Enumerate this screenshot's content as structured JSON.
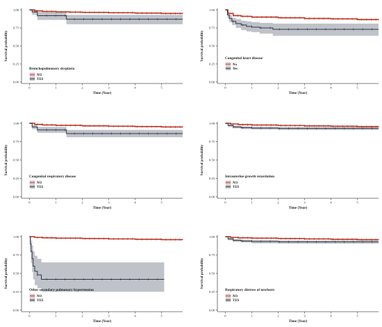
{
  "colors": {
    "no_line": "#c0392b",
    "no_band": "#e8a8a8",
    "yes_line": "#2f3640",
    "yes_band": "#b4b9bf",
    "axis": "#555555",
    "text": "#222222"
  },
  "chart_data": [
    {
      "type": "line",
      "title": "Bronchopulmonary dysplasia",
      "xlabel": "Time (Year)",
      "ylabel": "Survival probability",
      "xlim": [
        -0.3,
        5.8
      ],
      "ylim": [
        0,
        1.0
      ],
      "xticks": [
        0,
        1,
        2,
        3,
        4,
        5
      ],
      "yticks": [
        "0.00",
        "0.25",
        "0.50",
        "0.75",
        "1.00"
      ],
      "grid": false,
      "legend": "inside-left",
      "series": [
        {
          "name": "NO",
          "x": [
            0,
            0.2,
            0.5,
            1,
            1.5,
            2,
            3,
            4,
            5,
            5.8
          ],
          "y": [
            1.0,
            0.985,
            0.978,
            0.972,
            0.968,
            0.965,
            0.96,
            0.955,
            0.95,
            0.948
          ],
          "lower": [
            1.0,
            0.98,
            0.972,
            0.966,
            0.962,
            0.958,
            0.953,
            0.948,
            0.942,
            0.94
          ],
          "upper": [
            1.0,
            0.99,
            0.984,
            0.978,
            0.974,
            0.972,
            0.967,
            0.962,
            0.958,
            0.956
          ]
        },
        {
          "name": "YES",
          "x": [
            0,
            0.1,
            0.3,
            1.4,
            5.8
          ],
          "y": [
            1.0,
            0.97,
            0.92,
            0.87,
            0.87
          ],
          "lower": [
            1.0,
            0.93,
            0.86,
            0.8,
            0.8
          ],
          "upper": [
            1.0,
            1.0,
            0.97,
            0.93,
            0.93
          ]
        }
      ]
    },
    {
      "type": "line",
      "title": "Congenital heart disease",
      "xlabel": "Time (Year)",
      "ylabel": "Survival probability",
      "xlim": [
        -0.3,
        5.8
      ],
      "ylim": [
        0,
        1.0
      ],
      "xticks": [
        0,
        1,
        2,
        3,
        4,
        5
      ],
      "yticks": [
        "0.00",
        "0.25",
        "0.50",
        "0.75",
        "1.00"
      ],
      "grid": false,
      "legend": "inside-left",
      "series": [
        {
          "name": "No",
          "x": [
            0,
            0.1,
            0.3,
            0.6,
            1,
            2,
            3,
            4,
            5,
            5.8
          ],
          "y": [
            1.0,
            0.95,
            0.92,
            0.91,
            0.9,
            0.89,
            0.88,
            0.875,
            0.865,
            0.86
          ],
          "lower": [
            1.0,
            0.94,
            0.91,
            0.9,
            0.89,
            0.88,
            0.87,
            0.865,
            0.855,
            0.85
          ],
          "upper": [
            1.0,
            0.96,
            0.93,
            0.92,
            0.91,
            0.9,
            0.89,
            0.885,
            0.875,
            0.87
          ]
        },
        {
          "name": "Yes",
          "x": [
            0,
            0.08,
            0.15,
            0.25,
            0.4,
            0.6,
            0.8,
            1.0,
            1.3,
            1.8,
            5.8
          ],
          "y": [
            1.0,
            0.93,
            0.88,
            0.84,
            0.81,
            0.79,
            0.77,
            0.76,
            0.75,
            0.73,
            0.73
          ],
          "lower": [
            1.0,
            0.89,
            0.83,
            0.79,
            0.75,
            0.72,
            0.7,
            0.69,
            0.67,
            0.64,
            0.64
          ],
          "upper": [
            1.0,
            0.97,
            0.93,
            0.89,
            0.87,
            0.85,
            0.84,
            0.83,
            0.82,
            0.81,
            0.81
          ]
        }
      ]
    },
    {
      "type": "line",
      "title": "Congenital respiratory disease",
      "xlabel": "Time (Year)",
      "ylabel": "Survival probability",
      "xlim": [
        -0.3,
        5.8
      ],
      "ylim": [
        0,
        1.0
      ],
      "xticks": [
        0,
        1,
        2,
        3,
        4,
        5
      ],
      "yticks": [
        "0.00",
        "0.25",
        "0.50",
        "0.75",
        "1.00"
      ],
      "grid": false,
      "legend": "inside-left",
      "series": [
        {
          "name": "NO",
          "x": [
            0,
            0.2,
            0.5,
            1,
            2,
            3,
            4,
            5,
            5.8
          ],
          "y": [
            1.0,
            0.985,
            0.978,
            0.972,
            0.965,
            0.96,
            0.955,
            0.95,
            0.948
          ],
          "lower": [
            1.0,
            0.98,
            0.972,
            0.966,
            0.958,
            0.953,
            0.948,
            0.942,
            0.94
          ],
          "upper": [
            1.0,
            0.99,
            0.984,
            0.978,
            0.972,
            0.967,
            0.962,
            0.958,
            0.956
          ]
        },
        {
          "name": "YES",
          "x": [
            0,
            0.1,
            0.3,
            1.4,
            5.8
          ],
          "y": [
            1.0,
            0.95,
            0.91,
            0.86,
            0.86
          ],
          "lower": [
            1.0,
            0.92,
            0.87,
            0.81,
            0.81
          ],
          "upper": [
            1.0,
            0.98,
            0.95,
            0.91,
            0.91
          ]
        }
      ]
    },
    {
      "type": "line",
      "title": "Intrauterine growth retardation",
      "xlabel": "Time (Year)",
      "ylabel": "Survival probability",
      "xlim": [
        -0.3,
        5.8
      ],
      "ylim": [
        0,
        1.0
      ],
      "xticks": [
        0,
        1,
        2,
        3,
        4,
        5
      ],
      "yticks": [
        "0.00",
        "0.25",
        "0.50",
        "0.75",
        "1.00"
      ],
      "grid": false,
      "legend": "inside-left",
      "series": [
        {
          "name": "NO",
          "x": [
            0,
            0.2,
            0.5,
            1,
            2,
            3,
            4,
            5,
            5.8
          ],
          "y": [
            1.0,
            0.99,
            0.982,
            0.976,
            0.97,
            0.965,
            0.96,
            0.955,
            0.953
          ],
          "lower": [
            1.0,
            0.985,
            0.977,
            0.97,
            0.964,
            0.958,
            0.953,
            0.948,
            0.946
          ],
          "upper": [
            1.0,
            0.995,
            0.987,
            0.982,
            0.976,
            0.972,
            0.967,
            0.962,
            0.96
          ]
        },
        {
          "name": "YES",
          "x": [
            0,
            0.1,
            0.3,
            0.6,
            1,
            2,
            5.8
          ],
          "y": [
            1.0,
            0.97,
            0.95,
            0.94,
            0.935,
            0.93,
            0.93
          ],
          "lower": [
            1.0,
            0.95,
            0.93,
            0.92,
            0.915,
            0.91,
            0.91
          ],
          "upper": [
            1.0,
            0.99,
            0.97,
            0.96,
            0.955,
            0.95,
            0.95
          ]
        }
      ]
    },
    {
      "type": "line",
      "title": "Other secondary pulmonary hypertension",
      "xlabel": "Time (Year)",
      "ylabel": "Survival probability",
      "xlim": [
        -0.3,
        5.8
      ],
      "ylim": [
        0,
        1.0
      ],
      "xticks": [
        0,
        1,
        2,
        3,
        4,
        5
      ],
      "yticks": [
        "0.00",
        "0.25",
        "0.50",
        "0.75",
        "1.00"
      ],
      "grid": false,
      "legend": "inside-left",
      "series": [
        {
          "name": "NO",
          "x": [
            0,
            0.2,
            0.5,
            1,
            2,
            3,
            4,
            5,
            5.8
          ],
          "y": [
            1.0,
            0.99,
            0.985,
            0.98,
            0.975,
            0.97,
            0.965,
            0.96,
            0.958
          ],
          "lower": [
            1.0,
            0.985,
            0.98,
            0.974,
            0.969,
            0.963,
            0.958,
            0.953,
            0.951
          ],
          "upper": [
            1.0,
            0.995,
            0.99,
            0.986,
            0.981,
            0.977,
            0.972,
            0.967,
            0.965
          ]
        },
        {
          "name": "YES",
          "x": [
            0,
            0.03,
            0.06,
            0.1,
            0.14,
            0.2,
            0.3,
            0.45,
            5.1
          ],
          "y": [
            1.0,
            0.9,
            0.8,
            0.7,
            0.6,
            0.53,
            0.48,
            0.42,
            0.42
          ],
          "lower": [
            1.0,
            0.78,
            0.64,
            0.52,
            0.42,
            0.34,
            0.3,
            0.25,
            0.25
          ],
          "upper": [
            1.0,
            1.0,
            0.95,
            0.88,
            0.8,
            0.74,
            0.7,
            0.65,
            0.65
          ]
        }
      ]
    },
    {
      "type": "line",
      "title": "Respiratory distress of newborn",
      "xlabel": "Time (Year)",
      "ylabel": "Survival probability",
      "xlim": [
        -0.3,
        5.8
      ],
      "ylim": [
        0,
        1.0
      ],
      "xticks": [
        0,
        1,
        2,
        3,
        4,
        5
      ],
      "yticks": [
        "0.00",
        "0.25",
        "0.50",
        "0.75",
        "1.00"
      ],
      "grid": false,
      "legend": "inside-left",
      "series": [
        {
          "name": "NO",
          "x": [
            0,
            0.2,
            0.5,
            1,
            2,
            3,
            4,
            5,
            5.8
          ],
          "y": [
            1.0,
            0.99,
            0.985,
            0.98,
            0.975,
            0.97,
            0.965,
            0.96,
            0.958
          ],
          "lower": [
            1.0,
            0.985,
            0.98,
            0.974,
            0.969,
            0.963,
            0.958,
            0.953,
            0.951
          ],
          "upper": [
            1.0,
            0.995,
            0.99,
            0.986,
            0.981,
            0.977,
            0.972,
            0.967,
            0.965
          ]
        },
        {
          "name": "YES",
          "x": [
            0,
            0.1,
            0.3,
            0.6,
            1,
            2,
            5.8
          ],
          "y": [
            1.0,
            0.97,
            0.95,
            0.94,
            0.935,
            0.93,
            0.93
          ],
          "lower": [
            1.0,
            0.95,
            0.93,
            0.92,
            0.91,
            0.905,
            0.905
          ],
          "upper": [
            1.0,
            0.99,
            0.97,
            0.96,
            0.955,
            0.95,
            0.95
          ]
        }
      ]
    }
  ]
}
